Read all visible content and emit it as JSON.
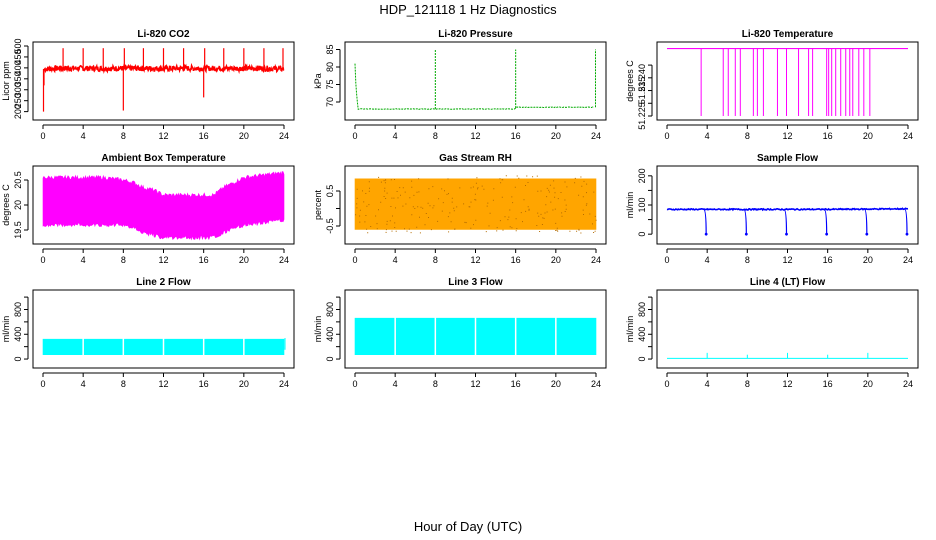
{
  "figure": {
    "title": "HDP_121118  1 Hz Diagnostics",
    "xlabel": "Hour of Day (UTC)"
  },
  "chart_data": [
    {
      "type": "line",
      "title": "Li-820 CO2",
      "ylabel": "Licor ppm",
      "color": "#ff0000",
      "xlim": [
        0,
        24
      ],
      "ylim": [
        180,
        500
      ],
      "xticks": [
        0,
        4,
        8,
        12,
        16,
        20,
        24
      ],
      "yticks": [
        200,
        250,
        300,
        350,
        400,
        450,
        500
      ],
      "pattern": {
        "kind": "band",
        "low": 385,
        "high": 410
      },
      "x": [
        0,
        2,
        4,
        6,
        8,
        10,
        12,
        14,
        16,
        18,
        20,
        22,
        24
      ],
      "y": [
        395,
        398,
        398,
        397,
        398,
        398,
        397,
        398,
        398,
        398,
        398,
        398,
        395
      ],
      "spikes": [
        {
          "x": 0.05,
          "y": 200
        },
        {
          "x": 0.1,
          "y": 320
        },
        {
          "x": 2.0,
          "y": 490
        },
        {
          "x": 4.0,
          "y": 490
        },
        {
          "x": 6.0,
          "y": 490
        },
        {
          "x": 8.0,
          "y": 205
        },
        {
          "x": 8.1,
          "y": 490
        },
        {
          "x": 10.0,
          "y": 490
        },
        {
          "x": 12.0,
          "y": 490
        },
        {
          "x": 14.0,
          "y": 490
        },
        {
          "x": 16.0,
          "y": 265
        },
        {
          "x": 16.1,
          "y": 490
        },
        {
          "x": 18.0,
          "y": 490
        },
        {
          "x": 20.0,
          "y": 490
        },
        {
          "x": 22.0,
          "y": 490
        },
        {
          "x": 23.9,
          "y": 490
        }
      ]
    },
    {
      "type": "line",
      "title": "Li-820 Pressure",
      "ylabel": "kPa",
      "color": "#00aa00",
      "xlim": [
        0,
        24
      ],
      "ylim": [
        66,
        86
      ],
      "xticks": [
        0,
        4,
        8,
        12,
        16,
        20,
        24
      ],
      "yticks": [
        70,
        75,
        80,
        85
      ],
      "x": [
        0,
        0.1,
        0.3,
        4,
        8,
        12,
        15.9,
        16.1,
        20,
        23.8
      ],
      "y": [
        81,
        74,
        68,
        68,
        68,
        68,
        68,
        68.5,
        68.5,
        68.5
      ],
      "spikes": [
        {
          "x": 8.0,
          "y": 85
        },
        {
          "x": 16.0,
          "y": 85
        },
        {
          "x": 23.95,
          "y": 85
        }
      ]
    },
    {
      "type": "line",
      "title": "Li-820 Temperature",
      "ylabel": "degrees C",
      "color": "#ff00ff",
      "xlim": [
        0,
        24
      ],
      "ylim": [
        51.225,
        51.2525
      ],
      "xticks": [
        0,
        4,
        8,
        12,
        16,
        20,
        24
      ],
      "yticks": [
        51.225,
        51.23,
        51.235,
        51.24,
        51.245
      ],
      "yticklabels": [
        "51.225",
        "",
        "51.235",
        "51.240",
        ""
      ],
      "pattern": {
        "kind": "flat",
        "value": 51.2515
      },
      "drops": [
        3.4,
        5.6,
        6.1,
        6.8,
        7.3,
        8.6,
        9.0,
        9.6,
        11.0,
        11.9,
        13.1,
        14.1,
        14.5,
        15.9,
        16.1,
        16.4,
        16.8,
        17.3,
        17.8,
        18.2,
        18.5,
        19.1,
        19.6,
        20.2
      ],
      "drop_to": 51.225
    },
    {
      "type": "area",
      "title": "Ambient Box Temperature",
      "ylabel": "degrees C",
      "color": "#ff00ff",
      "xlim": [
        0,
        24
      ],
      "ylim": [
        19.3,
        20.7
      ],
      "xticks": [
        0,
        4,
        8,
        12,
        16,
        20,
        24
      ],
      "yticks": [
        19.5,
        20.0,
        20.5
      ],
      "x": [
        0,
        2,
        4,
        6,
        8,
        9,
        10,
        11,
        12,
        14,
        16,
        17,
        18,
        19,
        20,
        22,
        24
      ],
      "low": [
        19.6,
        19.6,
        19.6,
        19.6,
        19.6,
        19.55,
        19.45,
        19.4,
        19.35,
        19.35,
        19.35,
        19.35,
        19.45,
        19.55,
        19.6,
        19.65,
        19.7
      ],
      "high": [
        20.55,
        20.55,
        20.55,
        20.55,
        20.5,
        20.45,
        20.35,
        20.3,
        20.2,
        20.2,
        20.2,
        20.2,
        20.35,
        20.45,
        20.55,
        20.6,
        20.65
      ]
    },
    {
      "type": "area",
      "title": "Gas Stream RH",
      "ylabel": "percent",
      "color": "#ffa500",
      "xlim": [
        0,
        24
      ],
      "ylim": [
        -0.9,
        1.1
      ],
      "xticks": [
        0,
        4,
        8,
        12,
        16,
        20,
        24
      ],
      "yticks": [
        -0.5,
        0.0,
        0.5
      ],
      "yticklabels": [
        "-0.5",
        "",
        "0.5"
      ],
      "x": [
        0,
        4,
        8,
        12,
        16,
        20,
        24
      ],
      "low": [
        -0.6,
        -0.6,
        -0.6,
        -0.6,
        -0.6,
        -0.6,
        -0.6
      ],
      "high": [
        0.85,
        0.85,
        0.85,
        0.85,
        0.85,
        0.85,
        0.85
      ]
    },
    {
      "type": "line",
      "title": "Sample Flow",
      "ylabel": "ml/min",
      "color": "#0000ff",
      "xlim": [
        0,
        24
      ],
      "ylim": [
        -20,
        220
      ],
      "xticks": [
        0,
        4,
        8,
        12,
        16,
        20,
        24
      ],
      "yticks": [
        0,
        50,
        100,
        150,
        200
      ],
      "yticklabels": [
        "0",
        "",
        "100",
        "",
        "200"
      ],
      "x": [
        0,
        4,
        8,
        12,
        16,
        20,
        24
      ],
      "y": [
        85,
        85,
        85,
        85,
        85,
        86,
        87
      ],
      "dips": [
        {
          "x": 3.9,
          "y": 0
        },
        {
          "x": 7.9,
          "y": 0
        },
        {
          "x": 11.9,
          "y": 0
        },
        {
          "x": 15.9,
          "y": 0
        },
        {
          "x": 19.9,
          "y": 0
        },
        {
          "x": 23.9,
          "y": 0
        }
      ]
    },
    {
      "type": "area",
      "title": "Line 2 Flow",
      "ylabel": "ml/min",
      "color": "#00ffff",
      "xlim": [
        0,
        24
      ],
      "ylim": [
        -80,
        1050
      ],
      "xticks": [
        0,
        4,
        8,
        12,
        16,
        20,
        24
      ],
      "yticks": [
        0,
        200,
        400,
        600,
        800,
        1000
      ],
      "yticklabels": [
        "0",
        "",
        "400",
        "",
        "800",
        ""
      ],
      "x": [
        0,
        24
      ],
      "low": [
        70,
        70
      ],
      "high": [
        320,
        320
      ],
      "gaps": [
        4,
        8,
        12,
        16,
        20
      ]
    },
    {
      "type": "area",
      "title": "Line 3 Flow",
      "ylabel": "ml/min",
      "color": "#00ffff",
      "xlim": [
        0,
        24
      ],
      "ylim": [
        -80,
        1050
      ],
      "xticks": [
        0,
        4,
        8,
        12,
        16,
        20,
        24
      ],
      "yticks": [
        0,
        200,
        400,
        600,
        800,
        1000
      ],
      "yticklabels": [
        "0",
        "",
        "400",
        "",
        "800",
        ""
      ],
      "x": [
        0,
        24
      ],
      "low": [
        70,
        70
      ],
      "high": [
        660,
        660
      ],
      "gaps": [
        4,
        8,
        12,
        16,
        20
      ]
    },
    {
      "type": "line",
      "title": "Line 4 (LT) Flow",
      "ylabel": "ml/min",
      "color": "#00ffff",
      "xlim": [
        0,
        24
      ],
      "ylim": [
        -80,
        1050
      ],
      "xticks": [
        0,
        4,
        8,
        12,
        16,
        20,
        24
      ],
      "yticks": [
        0,
        200,
        400,
        600,
        800,
        1000
      ],
      "yticklabels": [
        "0",
        "",
        "400",
        "",
        "800",
        ""
      ],
      "x": [
        0,
        24
      ],
      "y": [
        10,
        10
      ],
      "spikes": [
        {
          "x": 4,
          "y": 100
        },
        {
          "x": 8,
          "y": 70
        },
        {
          "x": 12,
          "y": 100
        },
        {
          "x": 16,
          "y": 70
        },
        {
          "x": 20,
          "y": 100
        }
      ]
    }
  ]
}
